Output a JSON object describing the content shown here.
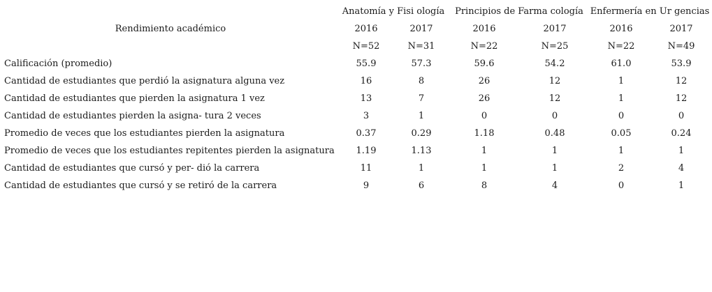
{
  "table": {
    "title": "Rendimiento académico",
    "groups": [
      "Anatomía y Fisi ología",
      "Principios de Farma cología",
      "Enfermería en Ur gencias"
    ],
    "years": [
      "2016",
      "2017",
      "2016",
      "2017",
      "2016",
      "2017"
    ],
    "counts": [
      "N=52",
      "N=31",
      "N=22",
      "N=25",
      "N=22",
      "N=49"
    ],
    "rows": [
      {
        "label": "Calificación (promedio)",
        "values": [
          "55.9",
          "57.3",
          "59.6",
          "54.2",
          "61.0",
          "53.9"
        ]
      },
      {
        "label": "Cantidad de estudiantes que perdió la asignatura alguna vez",
        "values": [
          "16",
          "8",
          "26",
          "12",
          "1",
          "12"
        ]
      },
      {
        "label": "Cantidad de estudiantes que pierden la asignatura 1 vez",
        "values": [
          "13",
          "7",
          "26",
          "12",
          "1",
          "12"
        ]
      },
      {
        "label": "Cantidad de estudiantes pierden la asigna- tura 2 veces",
        "values": [
          "3",
          "1",
          "0",
          "0",
          "0",
          "0"
        ]
      },
      {
        "label": "Promedio de veces que los estudiantes pierden la asignatura",
        "values": [
          "0.37",
          "0.29",
          "1.18",
          "0.48",
          "0.05",
          "0.24"
        ]
      },
      {
        "label": "Promedio de veces que los estudiantes repitentes pierden la asignatura",
        "values": [
          "1.19",
          "1.13",
          "1",
          "1",
          "1",
          "1"
        ]
      },
      {
        "label": "Cantidad de estudiantes que cursó y per- dió la carrera",
        "values": [
          "11",
          "1",
          "1",
          "1",
          "2",
          "4"
        ]
      },
      {
        "label": "Cantidad de estudiantes que cursó y se retiró de la carrera",
        "values": [
          "9",
          "6",
          "8",
          "4",
          "0",
          "1"
        ]
      }
    ]
  }
}
